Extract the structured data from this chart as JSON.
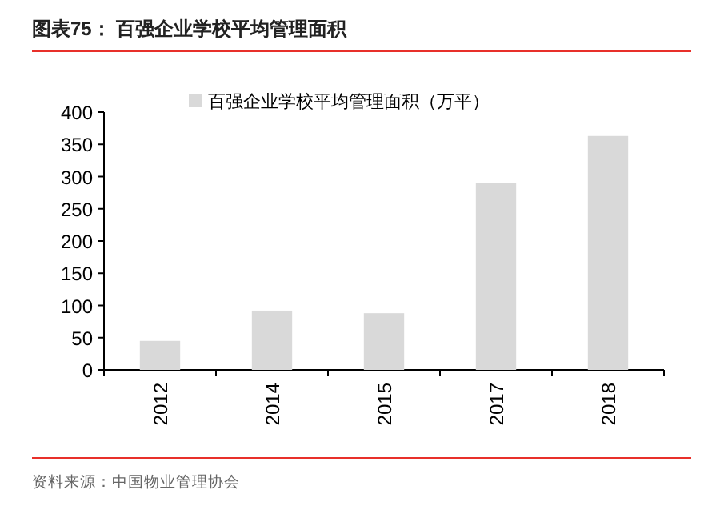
{
  "chart_data": {
    "type": "bar",
    "title": "图表75：  百强企业学校平均管理面积",
    "categories": [
      "2012",
      "2014",
      "2015",
      "2017",
      "2018"
    ],
    "series": [
      {
        "name": "百强企业学校平均管理面积（万平）",
        "color": "#d9d9d9",
        "values": [
          45,
          92,
          88,
          290,
          363
        ]
      }
    ],
    "ylim": [
      0,
      400
    ],
    "yticks": [
      0,
      50,
      100,
      150,
      200,
      250,
      300,
      350,
      400
    ],
    "legend": "top",
    "grid": false,
    "annotations": [
      "资料来源：中国物业管理协会"
    ]
  }
}
